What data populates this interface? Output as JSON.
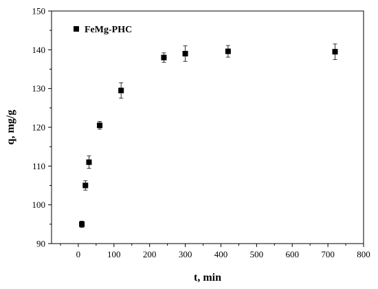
{
  "chart_data": {
    "type": "scatter",
    "xlabel": "t, min",
    "ylabel": "q, mg/g",
    "xlim": [
      -75,
      800
    ],
    "ylim": [
      90,
      150
    ],
    "xticks": [
      0,
      100,
      200,
      300,
      400,
      500,
      600,
      700,
      800
    ],
    "yticks": [
      90,
      100,
      110,
      120,
      130,
      140,
      150
    ],
    "legend_position": "top-left",
    "grid": false,
    "series": [
      {
        "name": "FeMg-PHC",
        "color": "#000000",
        "marker": "square",
        "x": [
          10,
          20,
          30,
          60,
          120,
          240,
          300,
          420,
          720
        ],
        "y": [
          95.0,
          105.0,
          111.0,
          120.5,
          129.5,
          138.0,
          139.0,
          139.6,
          139.5
        ],
        "error": [
          0.8,
          1.2,
          1.6,
          1.0,
          2.0,
          1.2,
          2.0,
          1.5,
          2.0
        ]
      }
    ]
  }
}
